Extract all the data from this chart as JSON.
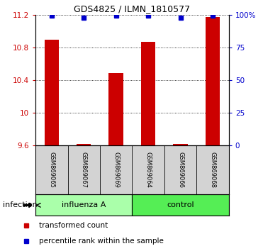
{
  "title": "GDS4825 / ILMN_1810577",
  "samples": [
    "GSM869065",
    "GSM869067",
    "GSM869069",
    "GSM869064",
    "GSM869066",
    "GSM869068"
  ],
  "groups": [
    "influenza A",
    "influenza A",
    "influenza A",
    "control",
    "control",
    "control"
  ],
  "group_labels": [
    "influenza A",
    "control"
  ],
  "group_colors_light": [
    "#AAFFAA",
    "#55EE55"
  ],
  "bar_values": [
    10.9,
    9.62,
    10.49,
    10.87,
    9.62,
    11.18
  ],
  "percentile_values": [
    99.5,
    98.0,
    99.5,
    99.5,
    98.0,
    99.8
  ],
  "ylim_left": [
    9.6,
    11.2
  ],
  "ylim_right": [
    0,
    100
  ],
  "yticks_left": [
    9.6,
    10.0,
    10.4,
    10.8,
    11.2
  ],
  "yticks_right": [
    0,
    25,
    50,
    75,
    100
  ],
  "ytick_labels_left": [
    "9.6",
    "10",
    "10.4",
    "10.8",
    "11.2"
  ],
  "ytick_labels_right": [
    "0",
    "25",
    "50",
    "75",
    "100%"
  ],
  "bar_color": "#CC0000",
  "dot_color": "#0000CC",
  "bar_width": 0.45,
  "infection_label": "infection",
  "legend_bar_label": "transformed count",
  "legend_dot_label": "percentile rank within the sample",
  "left_axis_color": "#CC0000",
  "right_axis_color": "#0000CC",
  "background_color": "#ffffff",
  "sample_box_color": "#D3D3D3"
}
